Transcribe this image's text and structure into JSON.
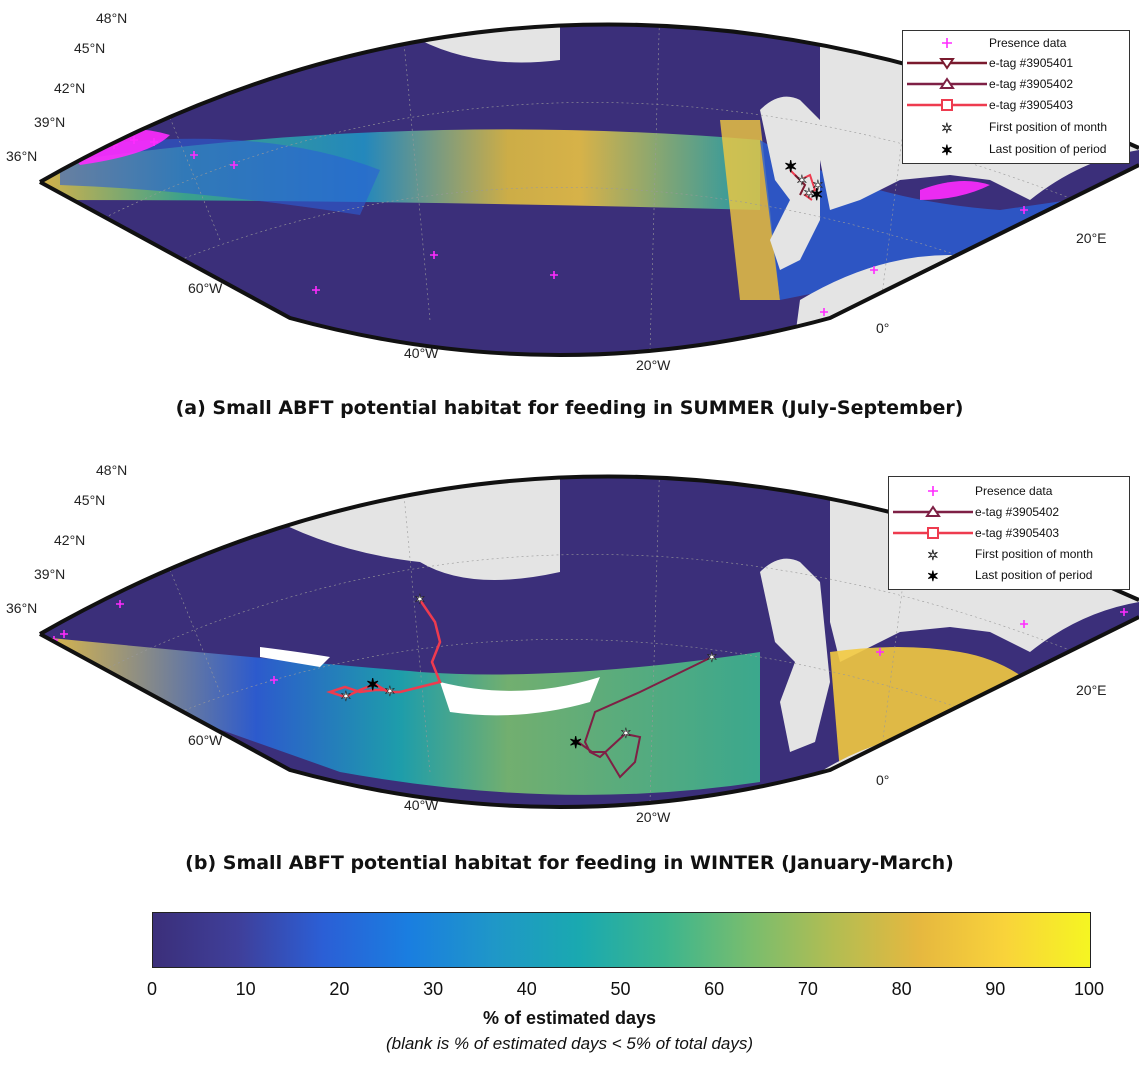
{
  "panels": [
    {
      "id": "a",
      "caption": "(a) Small ABFT potential habitat for feeding in SUMMER (July-September)",
      "lat_labels": [
        "48°N",
        "45°N",
        "42°N",
        "39°N",
        "36°N"
      ],
      "lon_labels": [
        "60°W",
        "40°W",
        "20°W",
        "0°",
        "20°E"
      ],
      "legend": [
        {
          "symbol": "plus",
          "label": "Presence data"
        },
        {
          "symbol": "line-triangle-down",
          "label": "e-tag #3905401"
        },
        {
          "symbol": "line-triangle-up",
          "label": "e-tag #3905402"
        },
        {
          "symbol": "line-square",
          "label": "e-tag #3905403"
        },
        {
          "symbol": "star-open",
          "label": "First position of month"
        },
        {
          "symbol": "star-filled",
          "label": "Last position of period"
        }
      ]
    },
    {
      "id": "b",
      "caption": "(b) Small ABFT potential habitat for feeding in WINTER (January-March)",
      "lat_labels": [
        "48°N",
        "45°N",
        "42°N",
        "39°N",
        "36°N"
      ],
      "lon_labels": [
        "60°W",
        "40°W",
        "20°W",
        "0°",
        "20°E"
      ],
      "legend": [
        {
          "symbol": "plus",
          "label": "Presence data"
        },
        {
          "symbol": "line-triangle-up",
          "label": "e-tag #3905402"
        },
        {
          "symbol": "line-square",
          "label": "e-tag #3905403"
        },
        {
          "symbol": "star-open",
          "label": "First position of month"
        },
        {
          "symbol": "star-filled",
          "label": "Last position of period"
        }
      ]
    }
  ],
  "colorbar": {
    "ticks": [
      "0",
      "10",
      "20",
      "30",
      "40",
      "50",
      "60",
      "70",
      "80",
      "90",
      "100"
    ],
    "title": "% of estimated days",
    "note": "(blank is % of estimated days < 5% of total days)",
    "colors": [
      "#3b2f7a",
      "#3f3f9a",
      "#2b5fd6",
      "#1a7ee0",
      "#1f97c8",
      "#1aa9b0",
      "#3bb58f",
      "#78bd6e",
      "#b3bd52",
      "#e6b83f",
      "#f9d33a",
      "#f5f522"
    ]
  },
  "colors": {
    "presence": "#ff2bff",
    "tag_3905401": "#7a1a2e",
    "tag_3905402": "#7e2045",
    "tag_3905403": "#ee3b4f",
    "land": "#e4e4e4",
    "ocean_low": "#35306f"
  }
}
